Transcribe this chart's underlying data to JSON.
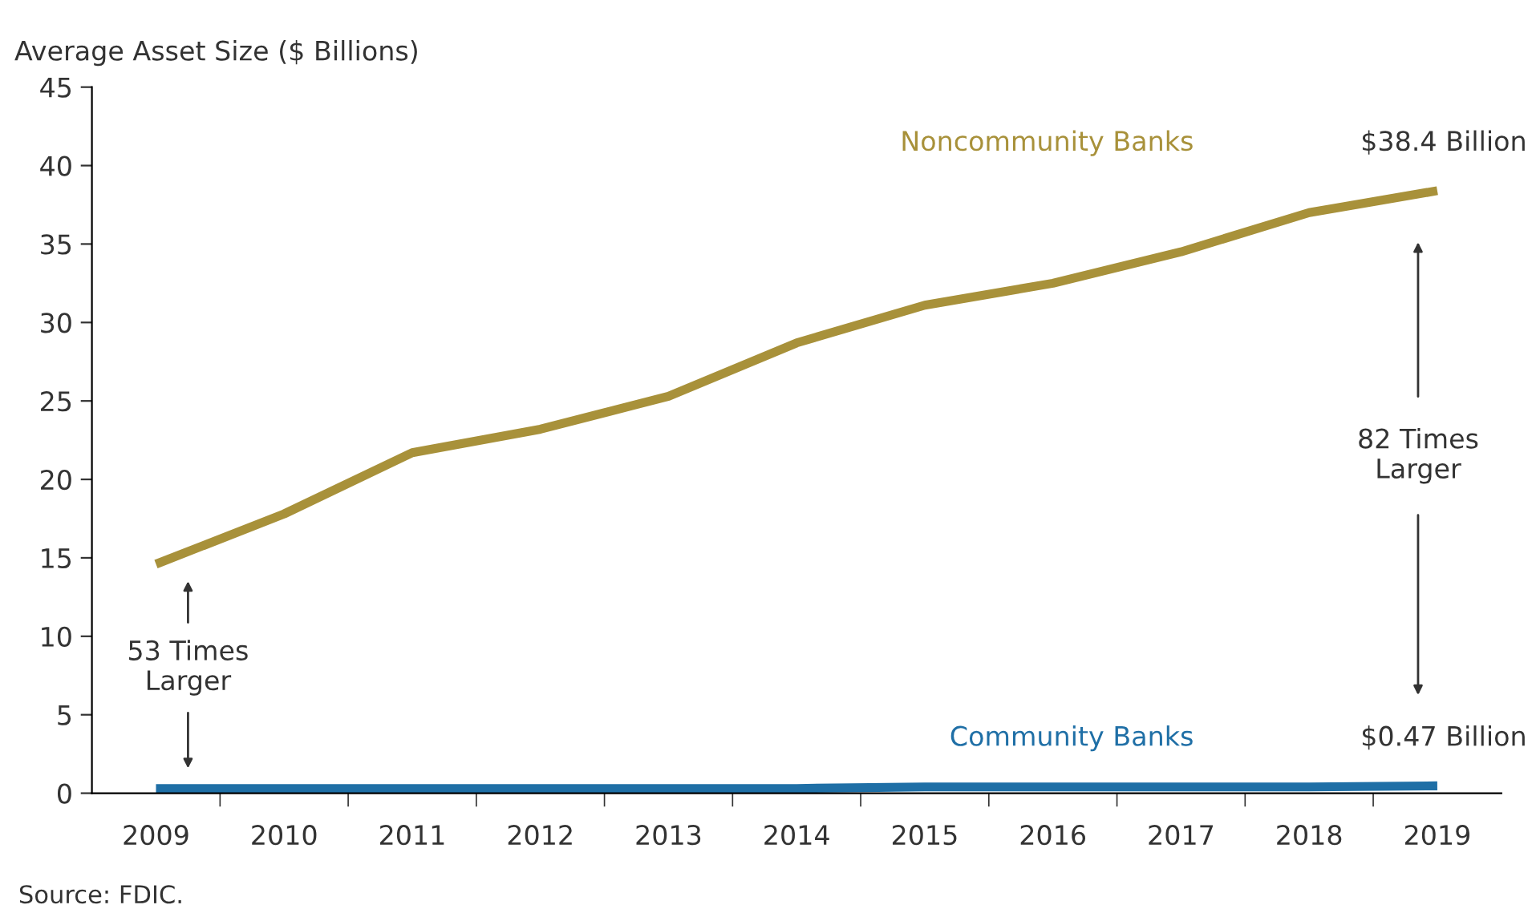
{
  "chart_data": {
    "type": "line",
    "ylabel": "Average Asset Size ($ Billions)",
    "categories": [
      "2009",
      "2010",
      "2011",
      "2012",
      "2013",
      "2014",
      "2015",
      "2016",
      "2017",
      "2018",
      "2019"
    ],
    "series": [
      {
        "name": "Noncommunity Banks",
        "color": "#a8913a",
        "values": [
          14.6,
          17.8,
          21.7,
          23.2,
          25.3,
          28.7,
          31.1,
          32.5,
          34.5,
          37.0,
          38.4
        ]
      },
      {
        "name": "Community Banks",
        "color": "#1f6fa6",
        "values": [
          0.3,
          0.3,
          0.3,
          0.3,
          0.3,
          0.3,
          0.4,
          0.4,
          0.4,
          0.4,
          0.47
        ]
      }
    ],
    "ylim": [
      0,
      45
    ],
    "yticks": [
      0,
      5,
      10,
      15,
      20,
      25,
      30,
      35,
      40,
      45
    ],
    "grid": false,
    "legend": false,
    "marker": "none",
    "line_style": "solid",
    "annotations": [
      {
        "text": "$38.4 Billion",
        "x": "2019",
        "y": 38.4
      },
      {
        "text": "$0.47 Billion",
        "x": "2019",
        "y": 0.47
      },
      "53 Times\nLarger",
      "82 Times\nLarger",
      "Source: FDIC."
    ]
  }
}
